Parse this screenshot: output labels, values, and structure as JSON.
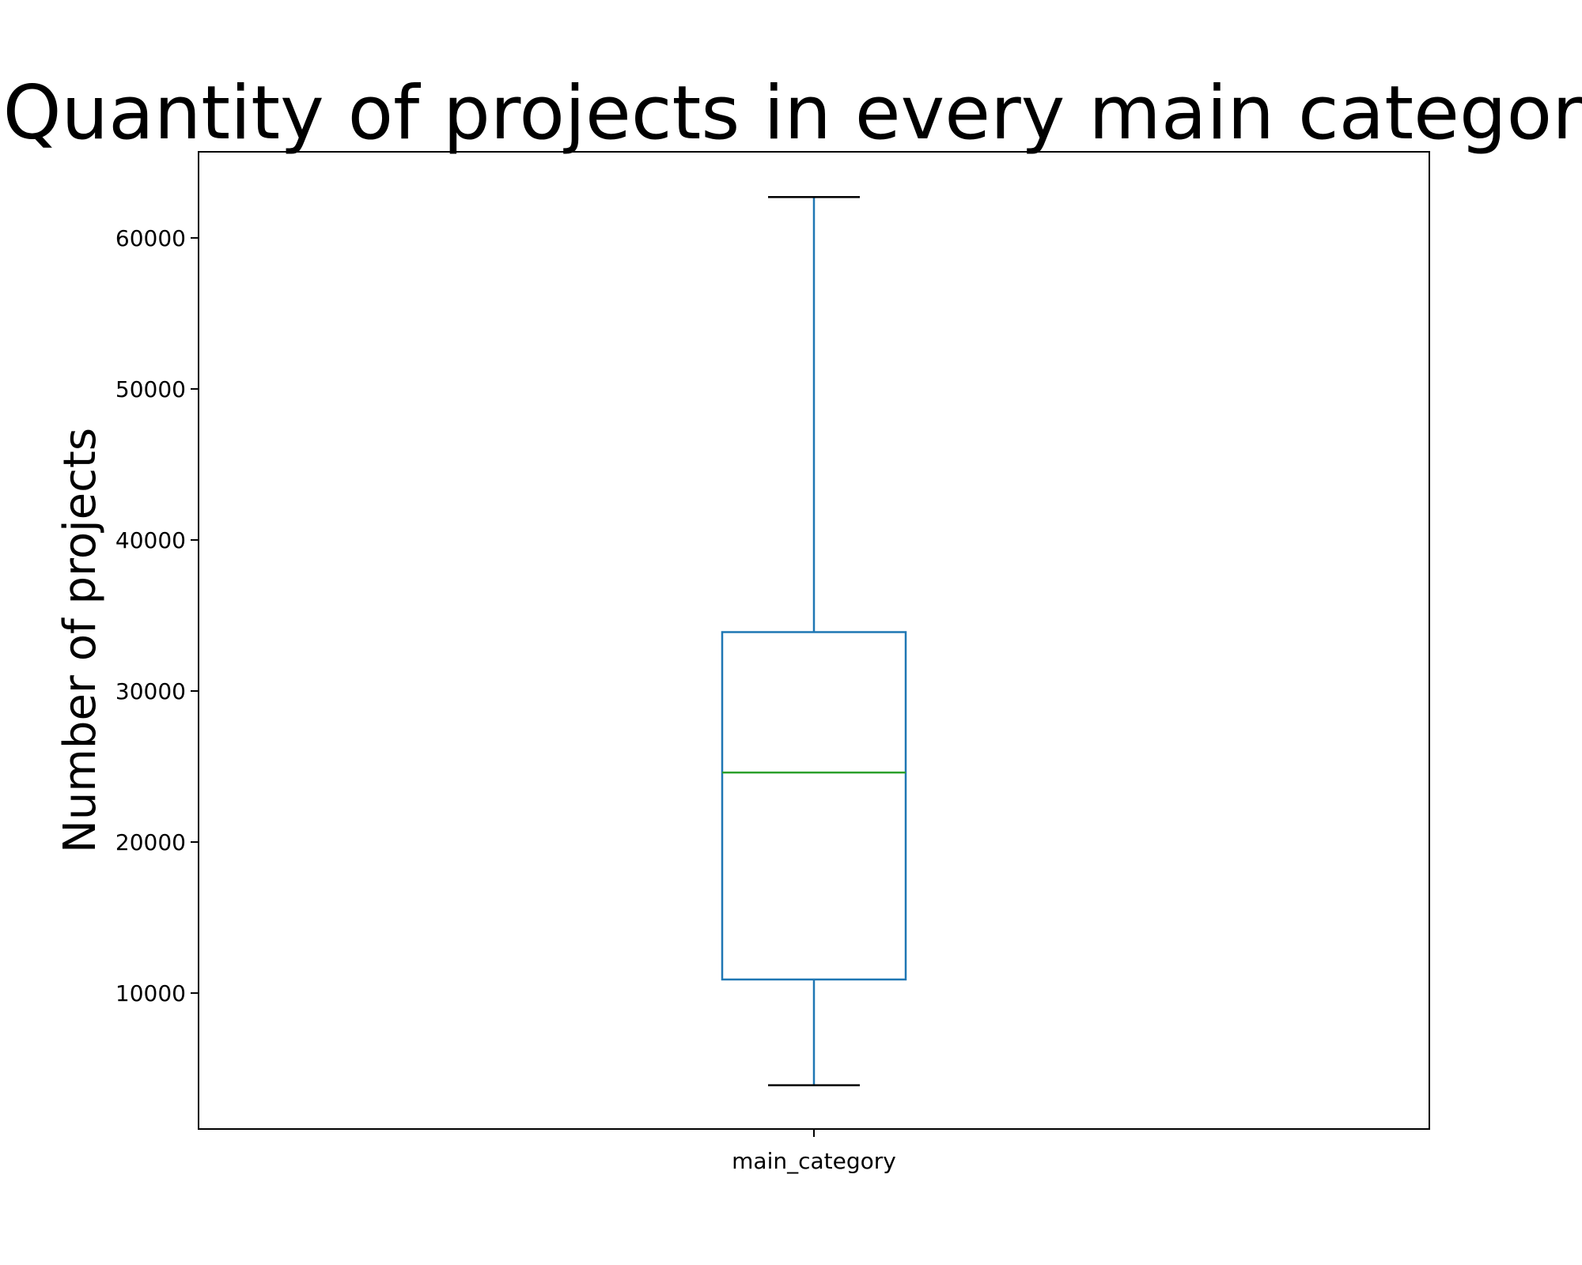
{
  "chart_data": {
    "type": "box",
    "title": "Quantity of projects in every main category",
    "xlabel": "",
    "ylabel": "Number of projects",
    "categories": [
      "main_category"
    ],
    "box": {
      "whisker_low": 3900,
      "q1": 10900,
      "median": 24600,
      "q3": 33900,
      "whisker_high": 62700
    },
    "yticks": [
      10000,
      20000,
      30000,
      40000,
      50000,
      60000
    ],
    "ylim": [
      1000,
      65700
    ],
    "grid": false,
    "colors": {
      "box": "#1f77b4",
      "whisker": "#1f77b4",
      "cap": "#000000",
      "median": "#2ca02c"
    }
  }
}
